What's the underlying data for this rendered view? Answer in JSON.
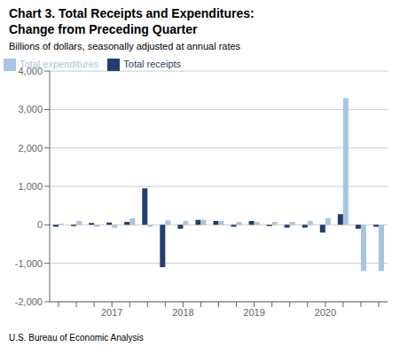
{
  "chart_data": {
    "type": "bar",
    "title": "Chart 3. Total Receipts and Expenditures:\nChange from Preceding Quarter",
    "subtitle": "Billions of dollars, seasonally adjusted at annual rates",
    "footer": "U.S. Bureau of Economic Analysis",
    "categories": [
      null,
      null,
      null,
      "2017",
      null,
      null,
      null,
      "2018",
      null,
      null,
      null,
      "2019",
      null,
      null,
      null,
      "2020",
      null,
      null,
      null
    ],
    "series": [
      {
        "name": "Total receipts",
        "color": "#1f3f6e",
        "values": [
          -50,
          -30,
          50,
          60,
          80,
          950,
          -1100,
          -100,
          130,
          100,
          -50,
          100,
          -30,
          -70,
          -70,
          -200,
          280,
          -100,
          -50
        ]
      },
      {
        "name": "Total expenditures",
        "color": "#a8c4e0",
        "values": [
          30,
          100,
          -50,
          -80,
          170,
          -50,
          120,
          100,
          130,
          100,
          80,
          80,
          80,
          80,
          100,
          170,
          3300,
          -1200,
          -1200
        ]
      }
    ],
    "ylim": [
      -2000,
      4000
    ],
    "yticks": [
      {
        "value": -2000,
        "label": "-2,000"
      },
      {
        "value": -1000,
        "label": "-1,000"
      },
      0,
      {
        "value": 1000,
        "label": "1,000"
      },
      {
        "value": 2000,
        "label": "2,000"
      },
      {
        "value": 3000,
        "label": "3,000"
      },
      {
        "value": 4000,
        "label": "4,000"
      }
    ],
    "grid": true,
    "legend": "upper left"
  }
}
